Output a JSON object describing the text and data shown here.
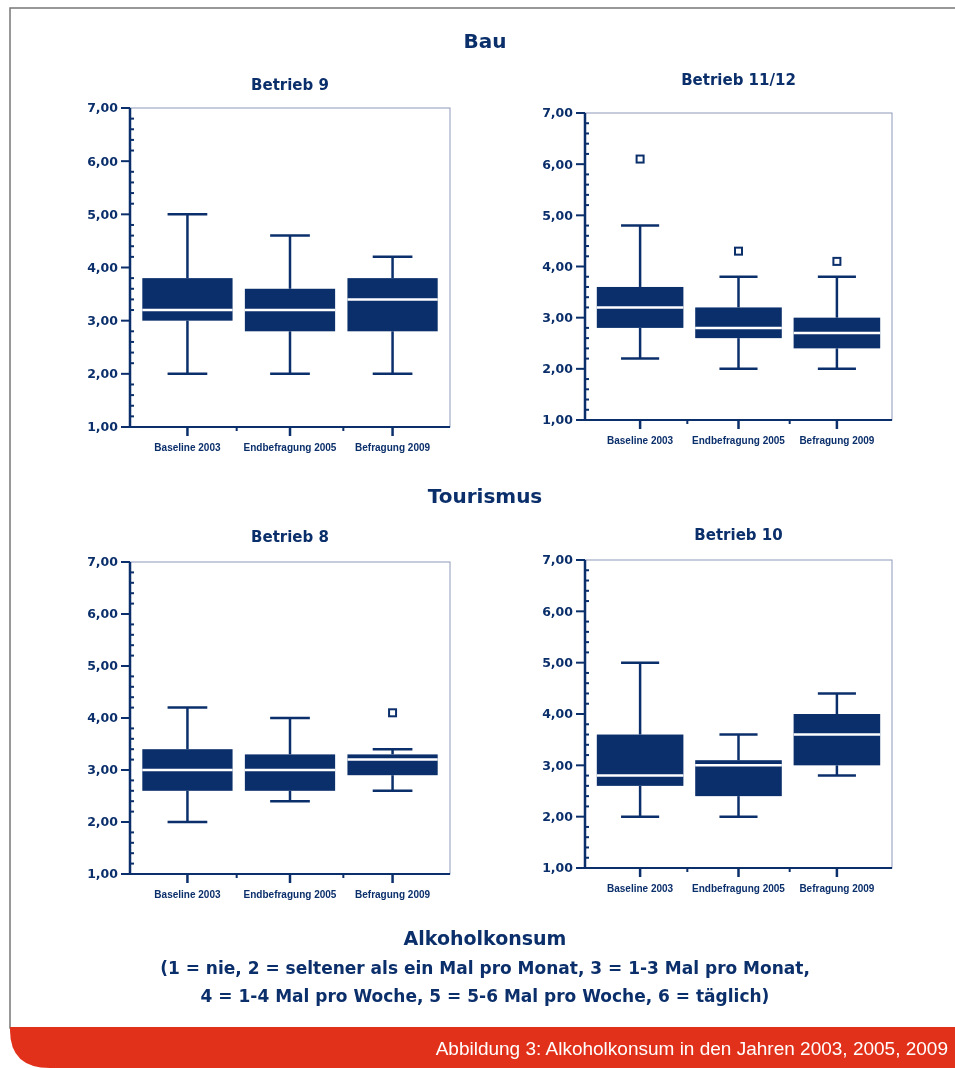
{
  "chart_data": [
    {
      "type": "box",
      "title": "Betrieb 9",
      "annotations": [
        "Bau"
      ],
      "color": "#0b2f6b",
      "categories": [
        "Baseline 2003",
        "Endbefragung 2005",
        "Befragung 2009"
      ],
      "boxes": [
        {
          "low": 2.0,
          "q1": 3.0,
          "median": 3.2,
          "q3": 3.8,
          "high": 5.0
        },
        {
          "low": 2.0,
          "q1": 2.8,
          "median": 3.2,
          "q3": 3.6,
          "high": 4.6
        },
        {
          "low": 2.0,
          "q1": 2.8,
          "median": 3.4,
          "q3": 3.8,
          "high": 4.2
        }
      ],
      "ylim": [
        1,
        7
      ],
      "yticks": [
        {
          "value": 1,
          "label": "1,00"
        },
        {
          "value": 1.2,
          "label": null
        },
        {
          "value": 1.4,
          "label": null
        },
        {
          "value": 1.6,
          "label": null
        },
        {
          "value": 1.8,
          "label": null
        },
        {
          "value": 2,
          "label": "2,00"
        },
        {
          "value": 2.2,
          "label": null
        },
        {
          "value": 2.4,
          "label": null
        },
        {
          "value": 2.6,
          "label": null
        },
        {
          "value": 2.8,
          "label": null
        },
        {
          "value": 3,
          "label": "3,00"
        },
        {
          "value": 3.2,
          "label": null
        },
        {
          "value": 3.4,
          "label": null
        },
        {
          "value": 3.6,
          "label": null
        },
        {
          "value": 3.8,
          "label": null
        },
        {
          "value": 4,
          "label": "4,00"
        },
        {
          "value": 4.2,
          "label": null
        },
        {
          "value": 4.4,
          "label": null
        },
        {
          "value": 4.6,
          "label": null
        },
        {
          "value": 4.8,
          "label": null
        },
        {
          "value": 5,
          "label": "5,00"
        },
        {
          "value": 5.2,
          "label": null
        },
        {
          "value": 5.4,
          "label": null
        },
        {
          "value": 5.6,
          "label": null
        },
        {
          "value": 5.8,
          "label": null
        },
        {
          "value": 6,
          "label": "6,00"
        },
        {
          "value": 6.2,
          "label": null
        },
        {
          "value": 6.4,
          "label": null
        },
        {
          "value": 6.6,
          "label": null
        },
        {
          "value": 6.8,
          "label": null
        },
        {
          "value": 7,
          "label": "7,00"
        }
      ]
    },
    {
      "type": "box",
      "title": "Betrieb 11/12",
      "color": "#0b2f6b",
      "categories": [
        "Baseline 2003",
        "Endbefragung 2005",
        "Befragung 2009"
      ],
      "boxes": [
        {
          "low": 2.2,
          "q1": 2.8,
          "median": 3.2,
          "q3": 3.6,
          "high": 4.8,
          "outliers": [
            6.1
          ]
        },
        {
          "low": 2.0,
          "q1": 2.6,
          "median": 2.8,
          "q3": 3.2,
          "high": 3.8,
          "outliers": [
            4.3
          ]
        },
        {
          "low": 2.0,
          "q1": 2.4,
          "median": 2.7,
          "q3": 3.0,
          "high": 3.8,
          "outliers": [
            4.1
          ]
        }
      ],
      "ylim": [
        1,
        7
      ],
      "yticks": [
        {
          "value": 1,
          "label": "1,00"
        },
        {
          "value": 1.2,
          "label": null
        },
        {
          "value": 1.4,
          "label": null
        },
        {
          "value": 1.6,
          "label": null
        },
        {
          "value": 1.8,
          "label": null
        },
        {
          "value": 2,
          "label": "2,00"
        },
        {
          "value": 2.2,
          "label": null
        },
        {
          "value": 2.4,
          "label": null
        },
        {
          "value": 2.6,
          "label": null
        },
        {
          "value": 2.8,
          "label": null
        },
        {
          "value": 3,
          "label": "3,00"
        },
        {
          "value": 3.2,
          "label": null
        },
        {
          "value": 3.4,
          "label": null
        },
        {
          "value": 3.6,
          "label": null
        },
        {
          "value": 3.8,
          "label": null
        },
        {
          "value": 4,
          "label": "4,00"
        },
        {
          "value": 4.2,
          "label": null
        },
        {
          "value": 4.4,
          "label": null
        },
        {
          "value": 4.6,
          "label": null
        },
        {
          "value": 4.8,
          "label": null
        },
        {
          "value": 5,
          "label": "5,00"
        },
        {
          "value": 5.2,
          "label": null
        },
        {
          "value": 5.4,
          "label": null
        },
        {
          "value": 5.6,
          "label": null
        },
        {
          "value": 5.8,
          "label": null
        },
        {
          "value": 6,
          "label": "6,00"
        },
        {
          "value": 6.2,
          "label": null
        },
        {
          "value": 6.4,
          "label": null
        },
        {
          "value": 6.6,
          "label": null
        },
        {
          "value": 6.8,
          "label": null
        },
        {
          "value": 7,
          "label": "7,00"
        }
      ]
    },
    {
      "type": "box",
      "title": "Betrieb 8",
      "annotations": [
        "Tourismus"
      ],
      "color": "#0b2f6b",
      "categories": [
        "Baseline 2003",
        "Endbefragung 2005",
        "Befragung 2009"
      ],
      "boxes": [
        {
          "low": 2.0,
          "q1": 2.6,
          "median": 3.0,
          "q3": 3.4,
          "high": 4.2
        },
        {
          "low": 2.4,
          "q1": 2.6,
          "median": 3.0,
          "q3": 3.3,
          "high": 4.0
        },
        {
          "low": 2.6,
          "q1": 2.9,
          "median": 3.2,
          "q3": 3.3,
          "high": 3.4,
          "outliers": [
            4.1
          ]
        }
      ],
      "ylim": [
        1,
        7
      ],
      "yticks": [
        {
          "value": 1,
          "label": "1,00"
        },
        {
          "value": 1.2,
          "label": null
        },
        {
          "value": 1.4,
          "label": null
        },
        {
          "value": 1.6,
          "label": null
        },
        {
          "value": 1.8,
          "label": null
        },
        {
          "value": 2,
          "label": "2,00"
        },
        {
          "value": 2.2,
          "label": null
        },
        {
          "value": 2.4,
          "label": null
        },
        {
          "value": 2.6,
          "label": null
        },
        {
          "value": 2.8,
          "label": null
        },
        {
          "value": 3,
          "label": "3,00"
        },
        {
          "value": 3.2,
          "label": null
        },
        {
          "value": 3.4,
          "label": null
        },
        {
          "value": 3.6,
          "label": null
        },
        {
          "value": 3.8,
          "label": null
        },
        {
          "value": 4,
          "label": "4,00"
        },
        {
          "value": 4.2,
          "label": null
        },
        {
          "value": 4.4,
          "label": null
        },
        {
          "value": 4.6,
          "label": null
        },
        {
          "value": 4.8,
          "label": null
        },
        {
          "value": 5,
          "label": "5,00"
        },
        {
          "value": 5.2,
          "label": null
        },
        {
          "value": 5.4,
          "label": null
        },
        {
          "value": 5.6,
          "label": null
        },
        {
          "value": 5.8,
          "label": null
        },
        {
          "value": 6,
          "label": "6,00"
        },
        {
          "value": 6.2,
          "label": null
        },
        {
          "value": 6.4,
          "label": null
        },
        {
          "value": 6.6,
          "label": null
        },
        {
          "value": 6.8,
          "label": null
        },
        {
          "value": 7,
          "label": "7,00"
        }
      ]
    },
    {
      "type": "box",
      "title": "Betrieb 10",
      "annotations": [
        "Alkoholkonsum",
        "(1 = nie, 2 = seltener als ein Mal pro Monat, 3 = 1-3 Mal pro Monat,",
        "4 = 1-4 Mal pro Woche, 5 = 5-6 Mal pro Woche, 6 = täglich)",
        "Abbildung 3: Alkoholkonsum in den Jahren 2003, 2005, 2009"
      ],
      "color": "#0b2f6b",
      "categories": [
        "Baseline 2003",
        "Endbefragung 2005",
        "Befragung 2009"
      ],
      "boxes": [
        {
          "low": 2.0,
          "q1": 2.6,
          "median": 2.8,
          "q3": 3.6,
          "high": 5.0
        },
        {
          "low": 2.0,
          "q1": 2.4,
          "median": 3.0,
          "q3": 3.1,
          "high": 3.6
        },
        {
          "low": 2.8,
          "q1": 3.0,
          "median": 3.6,
          "q3": 4.0,
          "high": 4.4
        }
      ],
      "ylim": [
        1,
        7
      ],
      "yticks": [
        {
          "value": 1,
          "label": "1,00"
        },
        {
          "value": 1.2,
          "label": null
        },
        {
          "value": 1.4,
          "label": null
        },
        {
          "value": 1.6,
          "label": null
        },
        {
          "value": 1.8,
          "label": null
        },
        {
          "value": 2,
          "label": "2,00"
        },
        {
          "value": 2.2,
          "label": null
        },
        {
          "value": 2.4,
          "label": null
        },
        {
          "value": 2.6,
          "label": null
        },
        {
          "value": 2.8,
          "label": null
        },
        {
          "value": 3,
          "label": "3,00"
        },
        {
          "value": 3.2,
          "label": null
        },
        {
          "value": 3.4,
          "label": null
        },
        {
          "value": 3.6,
          "label": null
        },
        {
          "value": 3.8,
          "label": null
        },
        {
          "value": 4,
          "label": "4,00"
        },
        {
          "value": 4.2,
          "label": null
        },
        {
          "value": 4.4,
          "label": null
        },
        {
          "value": 4.6,
          "label": null
        },
        {
          "value": 4.8,
          "label": null
        },
        {
          "value": 5,
          "label": "5,00"
        },
        {
          "value": 5.2,
          "label": null
        },
        {
          "value": 5.4,
          "label": null
        },
        {
          "value": 5.6,
          "label": null
        },
        {
          "value": 5.8,
          "label": null
        },
        {
          "value": 6,
          "label": "6,00"
        },
        {
          "value": 6.2,
          "label": null
        },
        {
          "value": 6.4,
          "label": null
        },
        {
          "value": 6.6,
          "label": null
        },
        {
          "value": 6.8,
          "label": null
        },
        {
          "value": 7,
          "label": "7,00"
        }
      ]
    }
  ]
}
